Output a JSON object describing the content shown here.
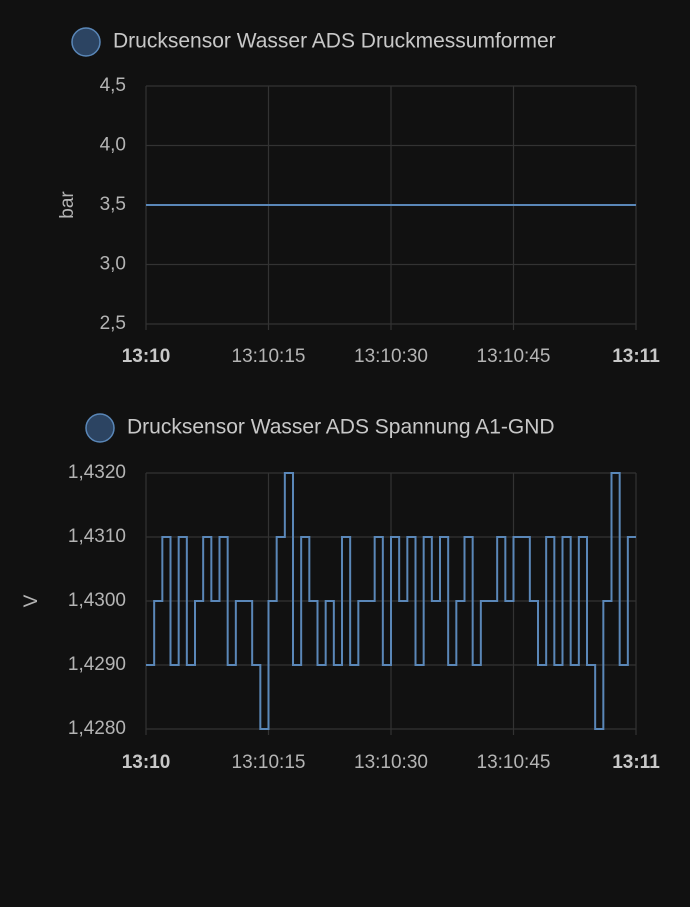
{
  "chart_data": [
    {
      "type": "line",
      "step": true,
      "ylabel": "bar",
      "series": [
        {
          "name": "Drucksensor Wasser ADS Druckmessumformer",
          "color": "#5a87b8",
          "x": [
            "13:10:00",
            "13:11:00"
          ],
          "values": [
            3.5,
            3.5
          ]
        }
      ],
      "ylim": [
        2.5,
        4.5
      ],
      "yticks": [
        {
          "value": 2.5,
          "label": "2,5"
        },
        {
          "value": 3.0,
          "label": "3,0"
        },
        {
          "value": 3.5,
          "label": "3,5"
        },
        {
          "value": 4.0,
          "label": "4,0"
        },
        {
          "value": 4.5,
          "label": "4,5"
        }
      ],
      "xlim": [
        "13:10",
        "13:11"
      ],
      "xticks": [
        "13:10",
        "13:10:15",
        "13:10:30",
        "13:10:45",
        "13:11"
      ],
      "grid": true
    },
    {
      "type": "line",
      "step": true,
      "ylabel": "V",
      "series": [
        {
          "name": "Drucksensor Wasser ADS Spannung A1-GND",
          "color": "#5a87b8",
          "x": [
            "13:10:00",
            "13:10:01",
            "13:10:02",
            "13:10:03",
            "13:10:04",
            "13:10:05",
            "13:10:06",
            "13:10:07",
            "13:10:08",
            "13:10:09",
            "13:10:10",
            "13:10:11",
            "13:10:12",
            "13:10:13",
            "13:10:14",
            "13:10:15",
            "13:10:16",
            "13:10:17",
            "13:10:18",
            "13:10:19",
            "13:10:20",
            "13:10:21",
            "13:10:22",
            "13:10:23",
            "13:10:24",
            "13:10:25",
            "13:10:26",
            "13:10:27",
            "13:10:28",
            "13:10:29",
            "13:10:30",
            "13:10:31",
            "13:10:32",
            "13:10:33",
            "13:10:34",
            "13:10:35",
            "13:10:36",
            "13:10:37",
            "13:10:38",
            "13:10:39",
            "13:10:40",
            "13:10:41",
            "13:10:42",
            "13:10:43",
            "13:10:44",
            "13:10:45",
            "13:10:46",
            "13:10:47",
            "13:10:48",
            "13:10:49",
            "13:10:50",
            "13:10:51",
            "13:10:52",
            "13:10:53",
            "13:10:54",
            "13:10:55",
            "13:10:56",
            "13:10:57",
            "13:10:58",
            "13:10:59",
            "13:11:00"
          ],
          "values": [
            1.429,
            1.43,
            1.431,
            1.429,
            1.431,
            1.429,
            1.43,
            1.431,
            1.43,
            1.431,
            1.429,
            1.43,
            1.43,
            1.429,
            1.428,
            1.43,
            1.431,
            1.432,
            1.429,
            1.431,
            1.43,
            1.429,
            1.43,
            1.429,
            1.431,
            1.429,
            1.43,
            1.43,
            1.431,
            1.429,
            1.431,
            1.43,
            1.431,
            1.429,
            1.431,
            1.43,
            1.431,
            1.429,
            1.43,
            1.431,
            1.429,
            1.43,
            1.43,
            1.431,
            1.43,
            1.431,
            1.431,
            1.43,
            1.429,
            1.431,
            1.429,
            1.431,
            1.429,
            1.431,
            1.429,
            1.428,
            1.43,
            1.432,
            1.429,
            1.431,
            1.431
          ]
        }
      ],
      "ylim": [
        1.428,
        1.432
      ],
      "yticks": [
        {
          "value": 1.428,
          "label": "1,4280"
        },
        {
          "value": 1.429,
          "label": "1,4290"
        },
        {
          "value": 1.43,
          "label": "1,4300"
        },
        {
          "value": 1.431,
          "label": "1,4310"
        },
        {
          "value": 1.432,
          "label": "1,4320"
        }
      ],
      "xlim": [
        "13:10",
        "13:11"
      ],
      "xticks": [
        "13:10",
        "13:10:15",
        "13:10:30",
        "13:10:45",
        "13:11"
      ],
      "grid": true
    }
  ]
}
